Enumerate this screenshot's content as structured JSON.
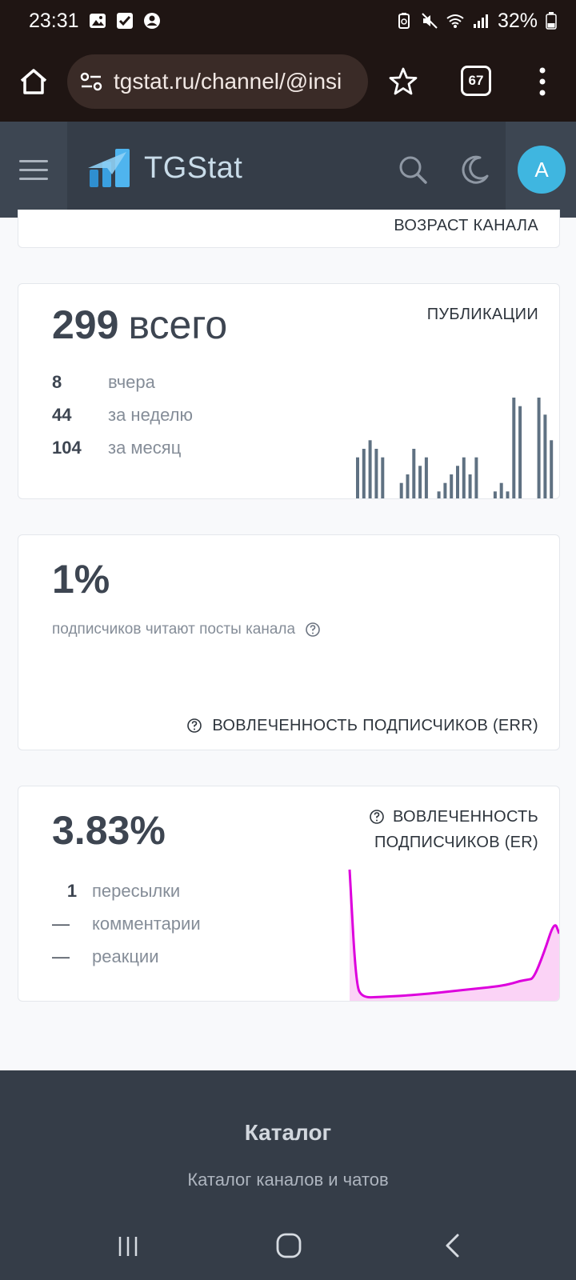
{
  "status_bar": {
    "time": "23:31",
    "battery": "32%"
  },
  "browser": {
    "url": "tgstat.ru/channel/@insi",
    "tab_count": "67"
  },
  "site": {
    "logo_text": "TGStat",
    "avatar_letter": "A"
  },
  "partial_card": {
    "label": "ВОЗРАСТ КАНАЛА"
  },
  "publications": {
    "label": "ПУБЛИКАЦИИ",
    "total": "299",
    "total_unit": "всего",
    "rows": [
      {
        "value": "8",
        "label": "вчера"
      },
      {
        "value": "44",
        "label": "за неделю"
      },
      {
        "value": "104",
        "label": "за месяц"
      }
    ]
  },
  "err": {
    "value": "1%",
    "subtitle": "подписчиков читают посты канала",
    "label": "ВОВЛЕЧЕННОСТЬ ПОДПИСЧИКОВ (ERR)"
  },
  "er": {
    "value": "3.83%",
    "label_line1": "ВОВЛЕЧЕННОСТЬ",
    "label_line2": "ПОДПИСЧИКОВ (ER)",
    "rows": [
      {
        "value": "1",
        "label": "пересылки"
      },
      {
        "value": "—",
        "label": "комментарии"
      },
      {
        "value": "—",
        "label": "реакции"
      }
    ]
  },
  "footer": {
    "title": "Каталог",
    "subtitle": "Каталог каналов и чатов"
  },
  "chart_data": [
    {
      "type": "bar",
      "values": [
        5,
        6,
        7,
        6,
        5,
        0,
        0,
        2,
        3,
        6,
        4,
        5,
        0,
        1,
        2,
        3,
        4,
        5,
        3,
        5,
        0,
        0,
        1,
        2,
        1,
        12,
        11,
        0,
        0,
        12,
        10,
        7
      ],
      "color": "#5f7182"
    },
    {
      "type": "area",
      "values": [
        100,
        10,
        0,
        0.5,
        1.5,
        3,
        5,
        7,
        9,
        11,
        13,
        14,
        15,
        35,
        60,
        50
      ],
      "color": "#dd00dd",
      "fill": "#fbd3f6"
    }
  ]
}
